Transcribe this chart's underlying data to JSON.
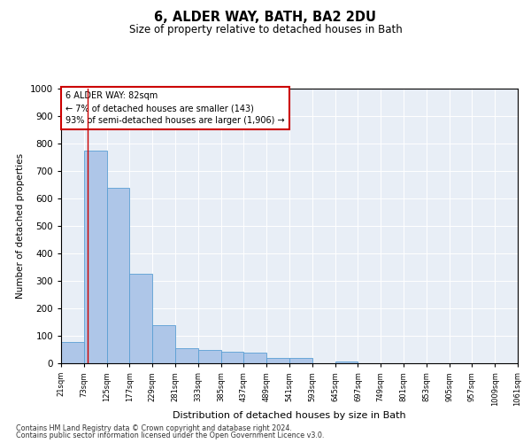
{
  "title": "6, ALDER WAY, BATH, BA2 2DU",
  "subtitle": "Size of property relative to detached houses in Bath",
  "xlabel": "Distribution of detached houses by size in Bath",
  "ylabel": "Number of detached properties",
  "annotation_line1": "6 ALDER WAY: 82sqm",
  "annotation_line2": "← 7% of detached houses are smaller (143)",
  "annotation_line3": "93% of semi-detached houses are larger (1,906) →",
  "property_size_sqm": 82,
  "bin_edges": [
    21,
    73,
    125,
    177,
    229,
    281,
    333,
    385,
    437,
    489,
    541,
    593,
    645,
    697,
    749,
    801,
    853,
    905,
    957,
    1009,
    1061
  ],
  "bar_heights": [
    78,
    775,
    638,
    325,
    140,
    55,
    47,
    42,
    38,
    20,
    19,
    0,
    8,
    0,
    0,
    0,
    0,
    0,
    0,
    0
  ],
  "bar_color": "#aec6e8",
  "bar_edge_color": "#5a9fd4",
  "vline_color": "#cc0000",
  "vline_x": 82,
  "annotation_box_color": "#cc0000",
  "ylim": [
    0,
    1000
  ],
  "xlim": [
    21,
    1061
  ],
  "background_color": "#e8eef6",
  "footer_line1": "Contains HM Land Registry data © Crown copyright and database right 2024.",
  "footer_line2": "Contains public sector information licensed under the Open Government Licence v3.0."
}
